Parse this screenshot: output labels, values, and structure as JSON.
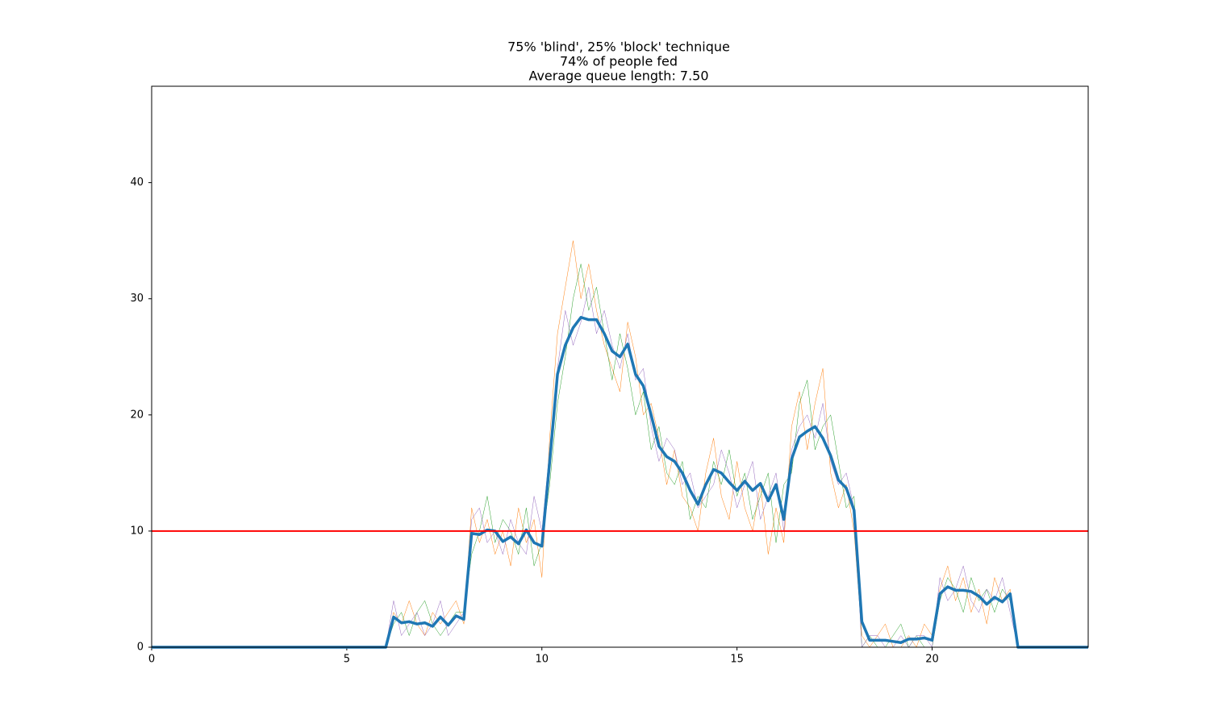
{
  "chart_data": {
    "type": "line",
    "title": [
      "75% 'blind', 25% 'block' technique",
      "74% of people fed",
      "Average queue length: 7.50"
    ],
    "x": [
      0,
      0.2,
      0.4,
      0.6,
      0.8,
      1,
      1.2,
      1.4,
      1.6,
      1.8,
      2,
      2.2,
      2.4,
      2.6,
      2.8,
      3,
      3.2,
      3.4,
      3.6,
      3.8,
      4,
      4.2,
      4.4,
      4.6,
      4.8,
      5,
      5.2,
      5.4,
      5.6,
      5.8,
      6,
      6.2,
      6.4,
      6.6,
      6.8,
      7,
      7.2,
      7.4,
      7.6,
      7.8,
      8,
      8.2,
      8.4,
      8.6,
      8.8,
      9,
      9.2,
      9.4,
      9.6,
      9.8,
      10,
      10.2,
      10.4,
      10.6,
      10.8,
      11,
      11.2,
      11.4,
      11.6,
      11.8,
      12,
      12.2,
      12.4,
      12.6,
      12.8,
      13,
      13.2,
      13.4,
      13.6,
      13.8,
      14,
      14.2,
      14.4,
      14.6,
      14.8,
      15,
      15.2,
      15.4,
      15.6,
      15.8,
      16,
      16.2,
      16.4,
      16.6,
      16.8,
      17,
      17.2,
      17.4,
      17.6,
      17.8,
      18,
      18.2,
      18.4,
      18.6,
      18.8,
      19,
      19.2,
      19.4,
      19.6,
      19.8,
      20,
      20.2,
      20.4,
      20.6,
      20.8,
      21,
      21.2,
      21.4,
      21.6,
      21.8,
      22,
      22.2,
      22.4,
      22.6,
      22.8,
      23,
      23.2,
      23.4,
      23.6,
      23.8,
      24
    ],
    "series": [
      {
        "color": "#ff7f0e",
        "linewidth": 0.5,
        "values": [
          0,
          0,
          0,
          0,
          0,
          0,
          0,
          0,
          0,
          0,
          0,
          0,
          0,
          0,
          0,
          0,
          0,
          0,
          0,
          0,
          0,
          0,
          0,
          0,
          0,
          0,
          0,
          0,
          0,
          0,
          0,
          3,
          2,
          4,
          2,
          1,
          3,
          2,
          3,
          4,
          2,
          12,
          9,
          11,
          8,
          10,
          7,
          12,
          9,
          11,
          6,
          18,
          27,
          31,
          35,
          30,
          33,
          29,
          26,
          24,
          22,
          28,
          25,
          20,
          21,
          18,
          14,
          17,
          13,
          12,
          10,
          15,
          18,
          13,
          11,
          16,
          12,
          10,
          14,
          8,
          12,
          9,
          19,
          22,
          17,
          21,
          24,
          15,
          12,
          14,
          10,
          1,
          0,
          1,
          2,
          0,
          0,
          1,
          0,
          2,
          1,
          5,
          7,
          4,
          6,
          3,
          5,
          2,
          6,
          4,
          5,
          0,
          0,
          0,
          0,
          0,
          0,
          0,
          0,
          0,
          0
        ]
      },
      {
        "color": "#2ca02c",
        "linewidth": 0.5,
        "values": [
          0,
          0,
          0,
          0,
          0,
          0,
          0,
          0,
          0,
          0,
          0,
          0,
          0,
          0,
          0,
          0,
          0,
          0,
          0,
          0,
          0,
          0,
          0,
          0,
          0,
          0,
          0,
          0,
          0,
          0,
          0,
          2,
          3,
          1,
          3,
          4,
          2,
          1,
          2,
          3,
          3,
          8,
          10,
          13,
          9,
          11,
          10,
          8,
          12,
          7,
          9,
          14,
          21,
          25,
          30,
          33,
          29,
          31,
          27,
          23,
          27,
          24,
          20,
          22,
          17,
          19,
          15,
          14,
          16,
          11,
          13,
          12,
          16,
          14,
          17,
          13,
          15,
          11,
          13,
          15,
          9,
          14,
          15,
          21,
          23,
          17,
          19,
          20,
          16,
          12,
          13,
          0,
          1,
          0,
          0,
          1,
          2,
          0,
          1,
          0,
          0,
          4,
          6,
          5,
          3,
          6,
          4,
          5,
          3,
          5,
          4,
          0,
          0,
          0,
          0,
          0,
          0,
          0,
          0,
          0,
          0
        ]
      },
      {
        "color": "#9467bd",
        "linewidth": 0.5,
        "values": [
          0,
          0,
          0,
          0,
          0,
          0,
          0,
          0,
          0,
          0,
          0,
          0,
          0,
          0,
          0,
          0,
          0,
          0,
          0,
          0,
          0,
          0,
          0,
          0,
          0,
          0,
          0,
          0,
          0,
          0,
          0,
          4,
          1,
          2,
          3,
          1,
          2,
          4,
          1,
          2,
          3,
          11,
          12,
          9,
          10,
          8,
          11,
          9,
          8,
          13,
          10,
          17,
          24,
          29,
          26,
          28,
          31,
          27,
          29,
          26,
          24,
          27,
          23,
          24,
          19,
          16,
          18,
          17,
          14,
          15,
          12,
          13,
          14,
          17,
          15,
          12,
          14,
          16,
          11,
          13,
          15,
          10,
          17,
          19,
          20,
          18,
          21,
          16,
          14,
          15,
          12,
          0,
          1,
          1,
          0,
          0,
          1,
          0,
          1,
          1,
          0,
          6,
          4,
          5,
          7,
          4,
          3,
          5,
          4,
          6,
          3,
          0,
          0,
          0,
          0,
          0,
          0,
          0,
          0,
          0,
          0
        ]
      },
      {
        "color": "#1f77b4",
        "linewidth": 3.5,
        "values": [
          0,
          0,
          0,
          0,
          0,
          0,
          0,
          0,
          0,
          0,
          0,
          0,
          0,
          0,
          0,
          0,
          0,
          0,
          0,
          0,
          0,
          0,
          0,
          0,
          0,
          0,
          0,
          0,
          0,
          0,
          0,
          2.6,
          2.1,
          2.2,
          2.0,
          2.1,
          1.8,
          2.6,
          1.9,
          2.7,
          2.4,
          9.8,
          9.7,
          10.1,
          10.0,
          9.1,
          9.5,
          8.9,
          10.1,
          9.0,
          8.7,
          16.0,
          23.5,
          26.0,
          27.5,
          28.4,
          28.2,
          28.2,
          27.0,
          25.5,
          25.0,
          26.1,
          23.5,
          22.5,
          20.0,
          17.3,
          16.4,
          16.0,
          15.0,
          13.5,
          12.3,
          14.0,
          15.3,
          15.0,
          14.2,
          13.5,
          14.3,
          13.5,
          14.1,
          12.6,
          14.0,
          11.0,
          16.2,
          18.1,
          18.6,
          19.0,
          18.0,
          16.5,
          14.4,
          13.7,
          11.8,
          2.2,
          0.6,
          0.6,
          0.6,
          0.5,
          0.4,
          0.7,
          0.7,
          0.8,
          0.6,
          4.6,
          5.2,
          4.9,
          4.9,
          4.8,
          4.4,
          3.7,
          4.3,
          3.9,
          4.6,
          0,
          0,
          0,
          0,
          0,
          0,
          0,
          0,
          0,
          0
        ]
      }
    ],
    "hline": {
      "value": 10,
      "color": "#ff0000"
    },
    "xlim": [
      0,
      24
    ],
    "xticks": [
      0,
      5,
      10,
      15,
      20
    ],
    "ylim": [
      0,
      48.3
    ],
    "yticks": [
      0,
      10,
      20,
      30,
      40
    ],
    "grid": false
  }
}
